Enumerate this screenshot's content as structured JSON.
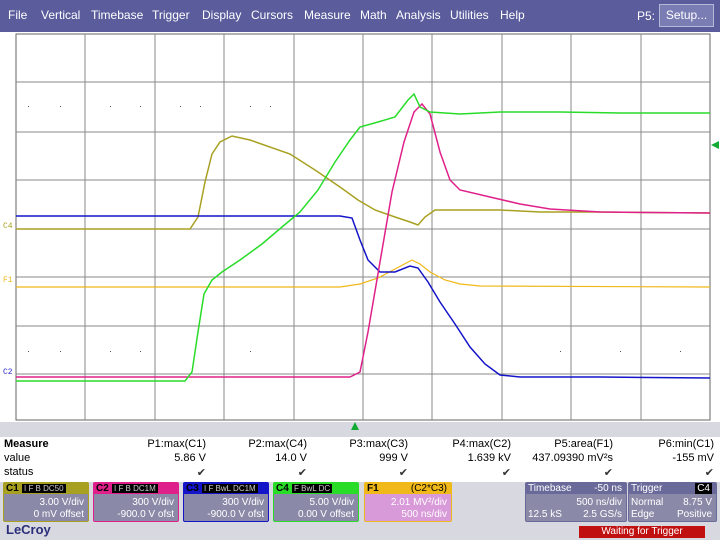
{
  "menu": [
    "File",
    "Vertical",
    "Timebase",
    "Trigger",
    "Display",
    "Cursors",
    "Measure",
    "Math",
    "Analysis",
    "Utilities",
    "Help"
  ],
  "p5_label": "P5:",
  "setup_label": "Setup...",
  "channel_markers": {
    "c4": "C4",
    "f1": "F1",
    "c2": "C2"
  },
  "colors": {
    "C1": "#a8a020",
    "C2": "#e0208a",
    "C3": "#1414c8",
    "C4": "#28dc28",
    "F1": "#f0b818"
  },
  "measure": {
    "title": "Measure",
    "row_value": "value",
    "row_status": "status",
    "items": [
      {
        "label": "P1:max(C1)",
        "value": "5.86 V"
      },
      {
        "label": "P2:max(C4)",
        "value": "14.0 V"
      },
      {
        "label": "P3:max(C3)",
        "value": "999 V"
      },
      {
        "label": "P4:max(C2)",
        "value": "1.639 kV"
      },
      {
        "label": "P5:area(F1)",
        "value": "437.09390 mV²s"
      },
      {
        "label": "P6:min(C1)",
        "value": "-155 mV"
      }
    ],
    "check": "✔"
  },
  "panels": {
    "c1": {
      "name": "C1",
      "flags": "I F B DC50",
      "line1": "3.00 V/div",
      "line2": "0 mV offset"
    },
    "c2": {
      "name": "C2",
      "flags": "I F B DC1M",
      "line1": "300 V/div",
      "line2": "-900.0 V ofst"
    },
    "c3": {
      "name": "C3",
      "flags": "I F BwL DC1M",
      "line1": "300 V/div",
      "line2": "-900.0 V ofst"
    },
    "c4": {
      "name": "C4",
      "flags": "F BwL DC",
      "line1": "5.00 V/div",
      "line2": "0.00 V offset"
    },
    "f1": {
      "name": "F1",
      "formula": "(C2*C3)",
      "line1": "2.01 MV²/div",
      "line2": "500 ns/div"
    },
    "timebase": {
      "name": "Timebase",
      "offset": "-50 ns",
      "line1": "500 ns/div",
      "sr_a": "12.5 kS",
      "sr_b": "2.5 GS/s"
    },
    "trigger": {
      "name": "Trigger",
      "src": "C4",
      "mode": "Normal",
      "level": "8.75 V",
      "type": "Edge",
      "slope": "Positive"
    }
  },
  "logo": "LeCroy",
  "status_message": "Waiting for Trigger"
}
